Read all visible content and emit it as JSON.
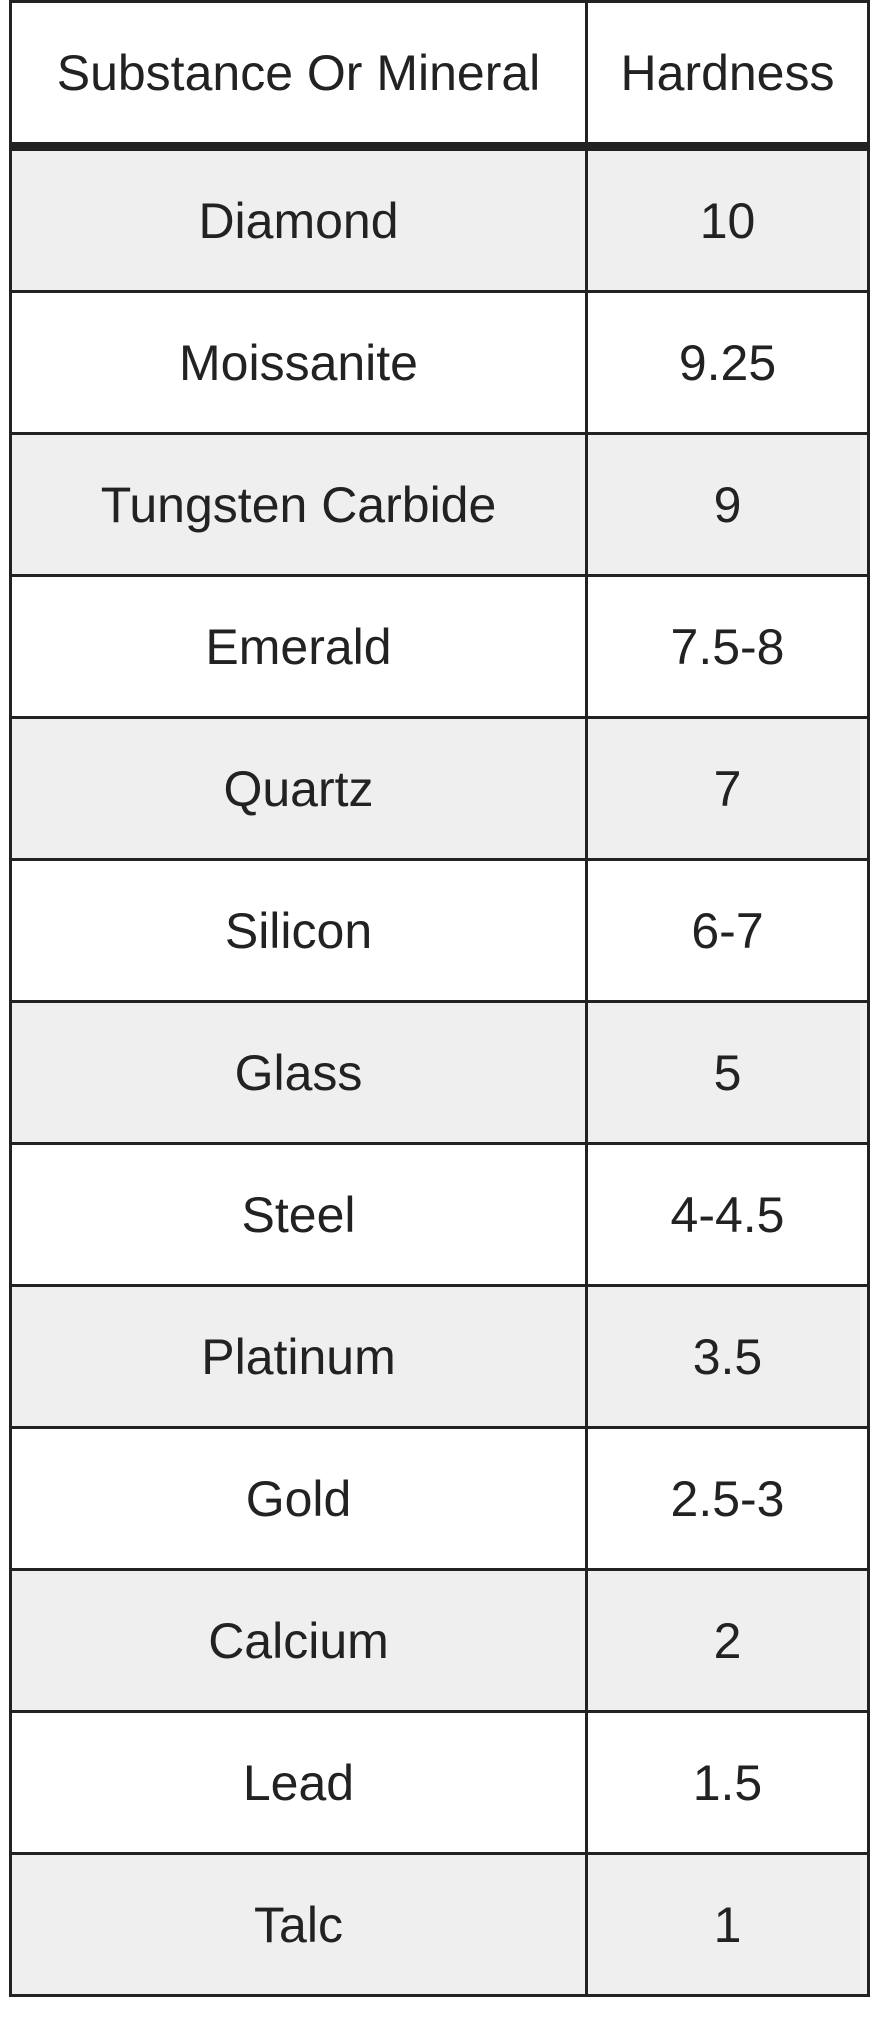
{
  "table": {
    "headers": [
      "Substance Or Mineral",
      "Hardness"
    ],
    "rows": [
      [
        "Diamond",
        "10"
      ],
      [
        "Moissanite",
        "9.25"
      ],
      [
        "Tungsten Carbide",
        "9"
      ],
      [
        "Emerald",
        "7.5-8"
      ],
      [
        "Quartz",
        "7"
      ],
      [
        "Silicon",
        "6-7"
      ],
      [
        "Glass",
        "5"
      ],
      [
        "Steel",
        "4-4.5"
      ],
      [
        "Platinum",
        "3.5"
      ],
      [
        "Gold",
        "2.5-3"
      ],
      [
        "Calcium",
        "2"
      ],
      [
        "Lead",
        "1.5"
      ],
      [
        "Talc",
        "1"
      ]
    ],
    "colors": {
      "stripe": "#efefef",
      "border": "#222222",
      "text": "#222222"
    }
  }
}
